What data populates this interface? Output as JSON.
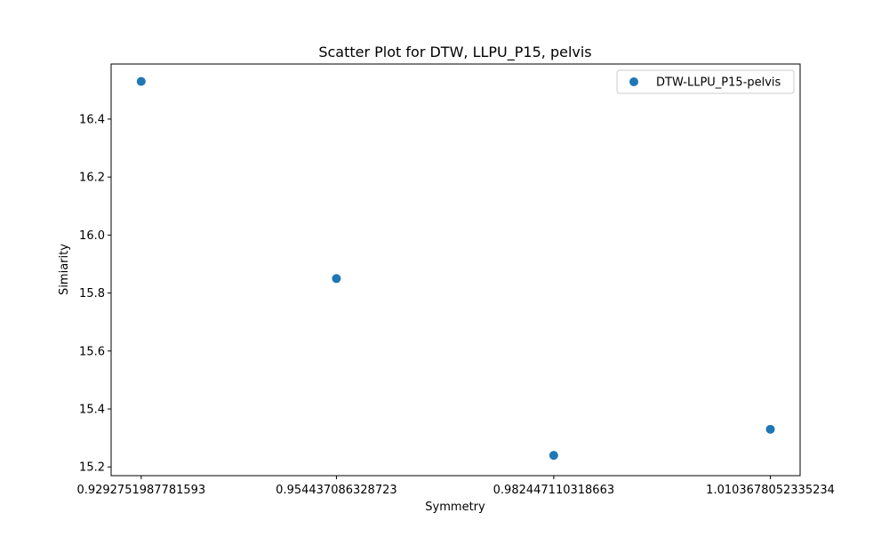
{
  "chart_data": {
    "type": "scatter",
    "title": "Scatter Plot for DTW, LLPU_P15, pelvis",
    "xlabel": "Symmetry",
    "ylabel": "Simiarity",
    "x_tick_labels": [
      "0.9292751987781593",
      "0.954437086328723",
      "0.982447110318663",
      "1.0103678052335234"
    ],
    "y_ticks": [
      15.2,
      15.4,
      15.6,
      15.8,
      16.0,
      16.2,
      16.4
    ],
    "y_tick_labels": [
      "15.2",
      "15.4",
      "15.6",
      "15.8",
      "16.0",
      "16.2",
      "16.4"
    ],
    "xlim": [
      0.9254,
      1.0142
    ],
    "ylim": [
      15.17,
      16.59
    ],
    "grid": false,
    "legend_position": "top-right",
    "series": [
      {
        "name": "DTW-LLPU_P15-pelvis",
        "color": "#1f77b4",
        "points": [
          {
            "x": 0.9292751987781593,
            "y": 16.53
          },
          {
            "x": 0.954437086328723,
            "y": 15.85
          },
          {
            "x": 0.982447110318663,
            "y": 15.24
          },
          {
            "x": 1.0103678052335234,
            "y": 15.33
          }
        ]
      }
    ]
  }
}
